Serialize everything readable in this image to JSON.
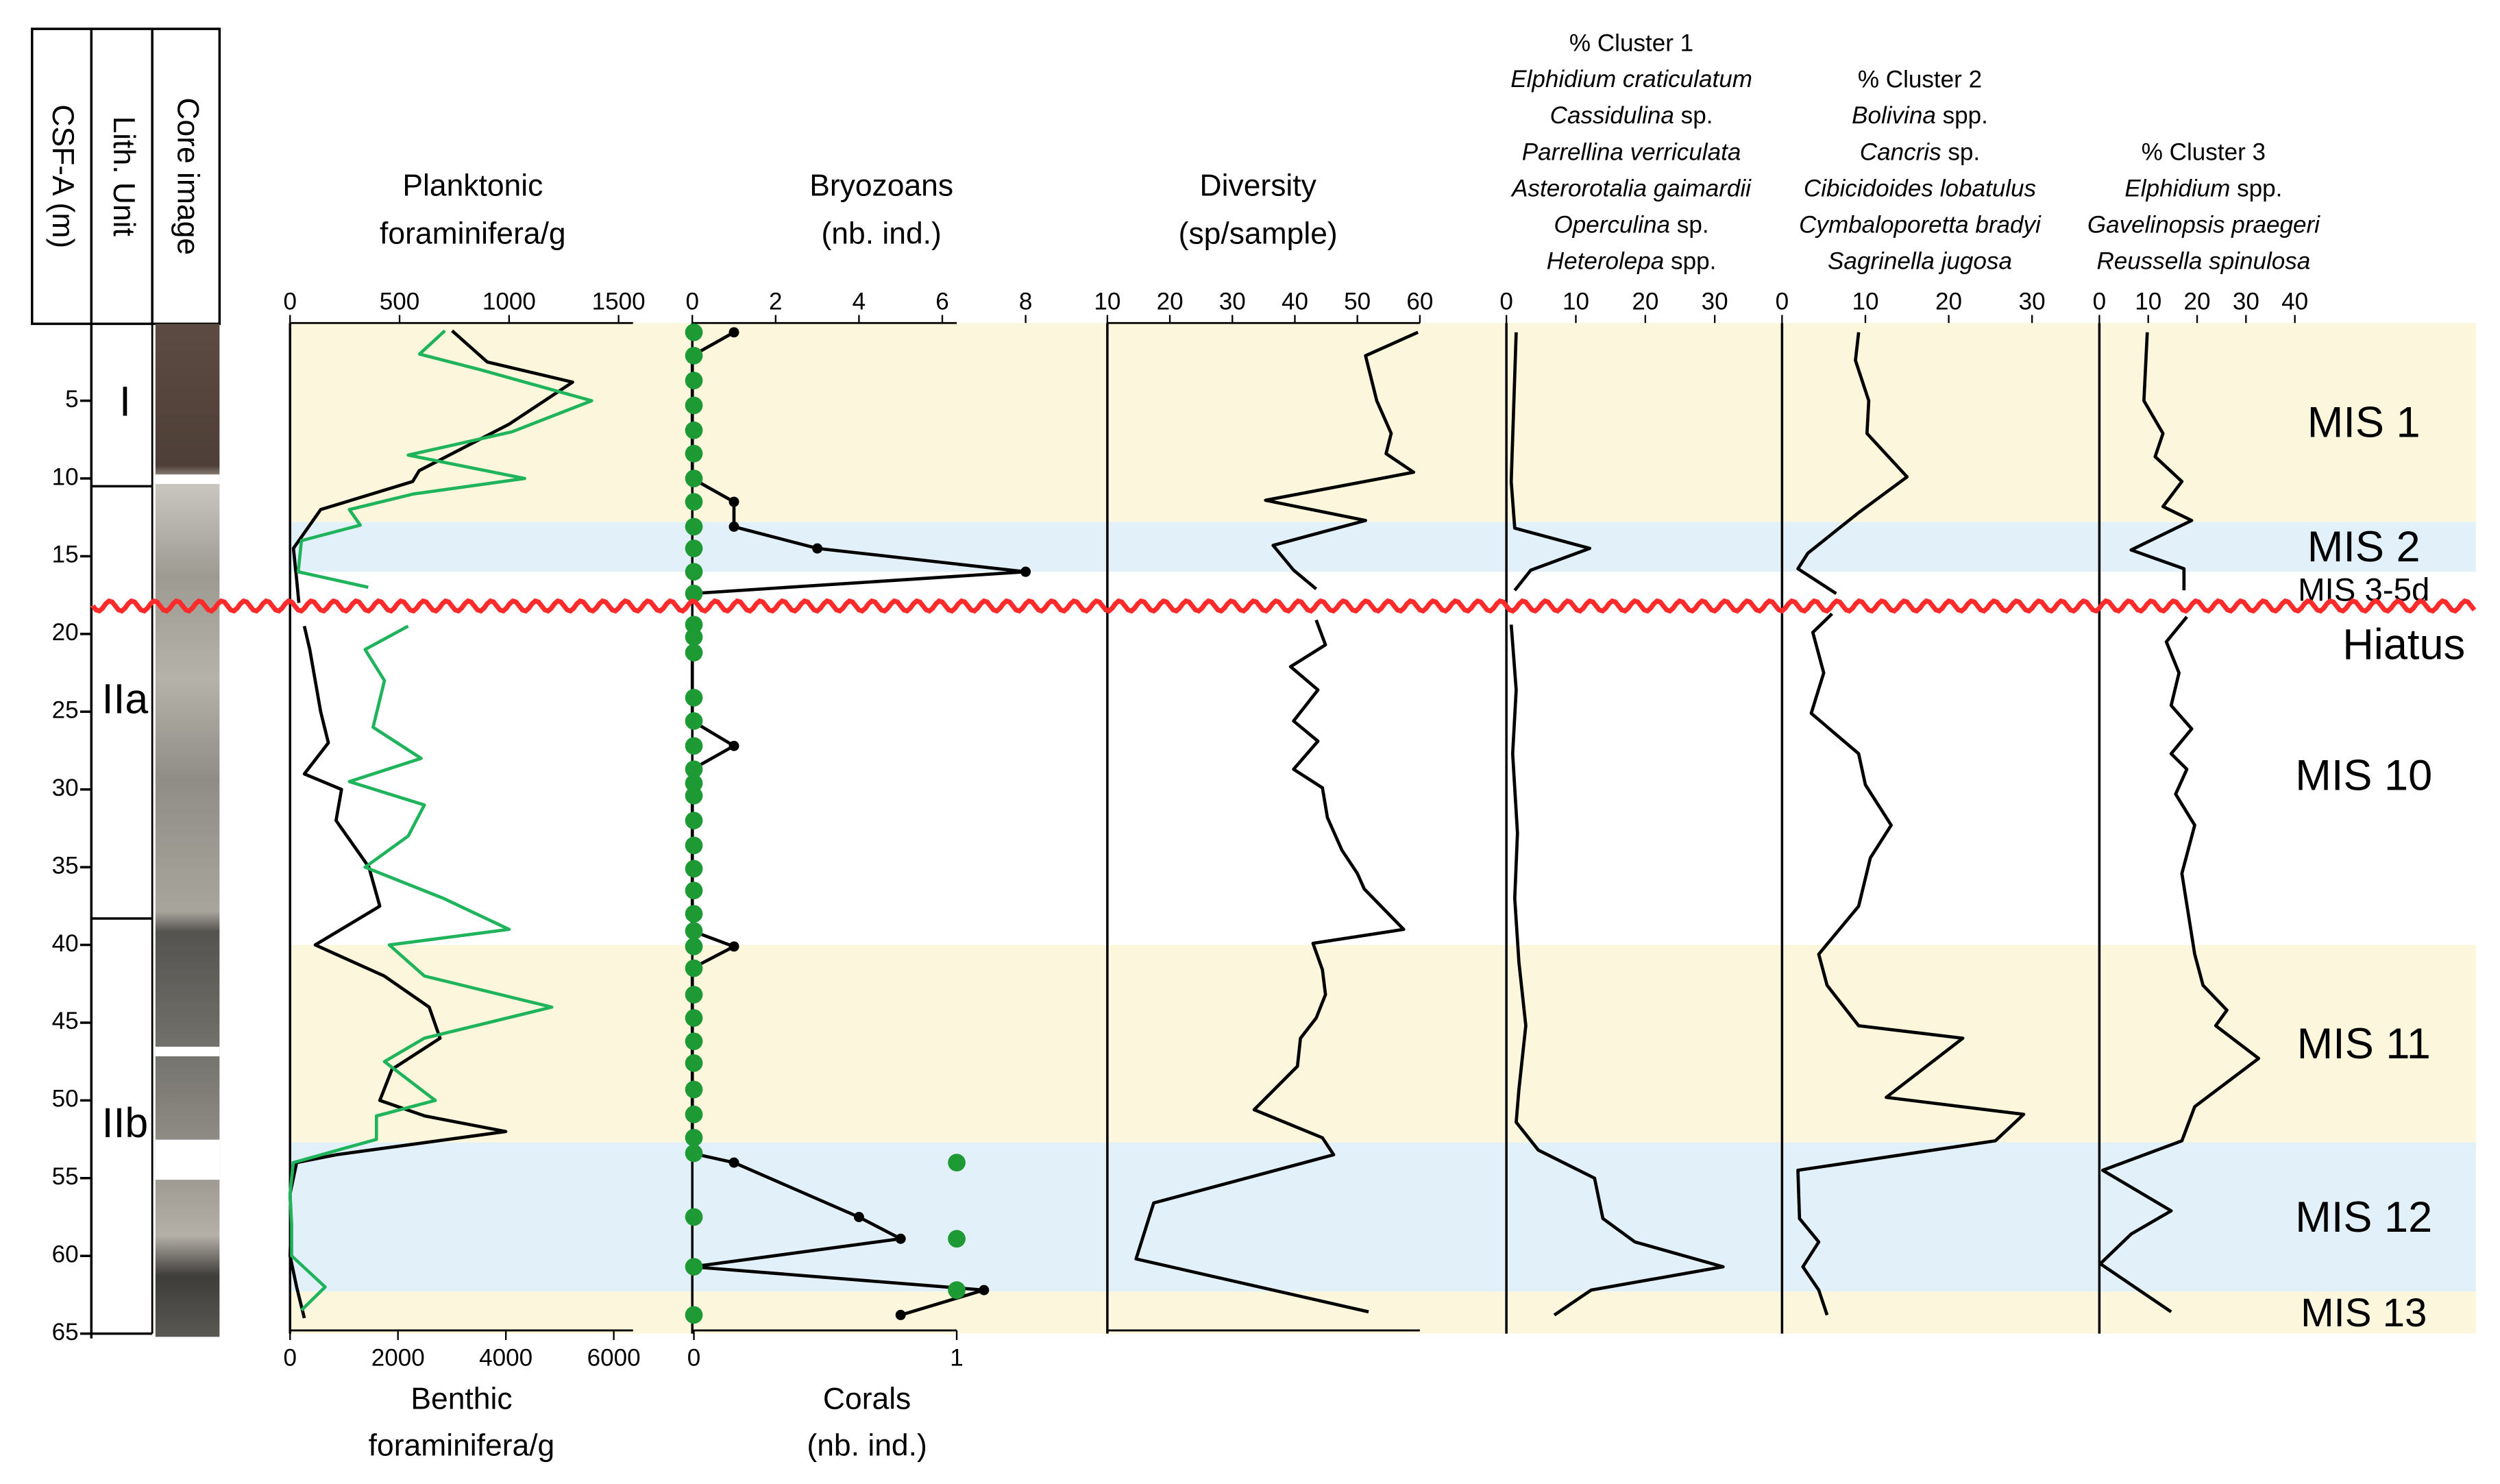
{
  "depth_axis": {
    "label": "CSF-A (m)",
    "ylim": [
      0,
      65
    ],
    "yticks": [
      5,
      10,
      15,
      20,
      25,
      30,
      35,
      40,
      45,
      50,
      55,
      60,
      65
    ]
  },
  "columns": [
    "Lith. Unit",
    "Core image"
  ],
  "lith_units": [
    {
      "label": "I",
      "top": 0,
      "bottom": 10.5
    },
    {
      "label": "IIa",
      "top": 10.5,
      "bottom": 38.3
    },
    {
      "label": "IIb",
      "top": 38.3,
      "bottom": 65
    }
  ],
  "intervals": [
    {
      "label": "MIS 1",
      "top": 0,
      "bottom": 12.8,
      "color": "#fcf7dc"
    },
    {
      "label": "MIS 2",
      "top": 12.8,
      "bottom": 16,
      "color": "#e2f1f9"
    },
    {
      "label": "MIS 3-5d",
      "top": 16,
      "bottom": 18.2,
      "color": null
    },
    {
      "label": "MIS 10",
      "top": 18.2,
      "bottom": 40,
      "color": null
    },
    {
      "label": "MIS 11",
      "top": 40,
      "bottom": 52.7,
      "color": "#fcf7dc"
    },
    {
      "label": "MIS 12",
      "top": 52.7,
      "bottom": 62.3,
      "color": "#e2f1f9"
    },
    {
      "label": "MIS 13",
      "top": 62.3,
      "bottom": 65,
      "color": "#fcf7dc"
    }
  ],
  "hiatus": {
    "label": "Hiatus",
    "depth": 18.2,
    "color": "#ff2a2a"
  },
  "chart_data": [
    {
      "type": "line",
      "box": true,
      "series": [
        {
          "xlabel": [
            "Planktonic",
            "foraminifera/g"
          ],
          "axis": "top",
          "color": "#000000",
          "line": true,
          "markers": false,
          "xlim": [
            0,
            1500
          ],
          "xticks": [
            0,
            500,
            1000,
            1500
          ],
          "depth": [
            0.5,
            2.5,
            3.8,
            6.5,
            9.5,
            10.2,
            12,
            14.5,
            16.5,
            18.0,
            19.5,
            21,
            25,
            27,
            29,
            30,
            32,
            35,
            37.5,
            40,
            42,
            44,
            46,
            48,
            50,
            51,
            52,
            53.5,
            54,
            56,
            58,
            60,
            62,
            64
          ],
          "values": [
            740,
            900,
            1290,
            1000,
            590,
            560,
            140,
            15,
            30,
            40,
            65,
            90,
            140,
            175,
            65,
            235,
            210,
            360,
            410,
            115,
            430,
            635,
            685,
            465,
            410,
            615,
            985,
            210,
            30,
            0,
            5,
            0,
            30,
            65
          ]
        },
        {
          "xlabel": [
            "Benthic",
            "foraminifera/g"
          ],
          "axis": "bottom",
          "color": "#1fb35c",
          "line": true,
          "markers": false,
          "xlim": [
            0,
            6000
          ],
          "xticks": [
            0,
            2000,
            4000,
            6000
          ],
          "depth": [
            0.5,
            2,
            3,
            5,
            7,
            8.5,
            10,
            11,
            12,
            13,
            14,
            16,
            17,
            19.5,
            21,
            23,
            26,
            28,
            29.5,
            31,
            33,
            35,
            37,
            39,
            40,
            42,
            44,
            46,
            47.5,
            50,
            51,
            52.5,
            54,
            56,
            58,
            60,
            62,
            63.5
          ],
          "values": [
            2870,
            2400,
            3520,
            5590,
            4110,
            2190,
            4350,
            2280,
            1100,
            1300,
            210,
            150,
            1450,
            2190,
            1390,
            1750,
            1540,
            2430,
            1100,
            2490,
            2190,
            1390,
            2840,
            4060,
            1840,
            2490,
            4850,
            2490,
            1750,
            2690,
            1600,
            1600,
            60,
            0,
            30,
            30,
            650,
            210
          ]
        }
      ]
    },
    {
      "type": "line",
      "box": true,
      "series": [
        {
          "xlabel": [
            "Bryozoans",
            "(nb. ind.)"
          ],
          "axis": "top",
          "color": "#000000",
          "line": true,
          "markers": true,
          "xlim": [
            0,
            8
          ],
          "xticks": [
            0,
            2,
            4,
            6,
            8
          ],
          "depth": [
            0.6,
            2.1,
            3.7,
            5.3,
            6.9,
            8.4,
            10,
            11.5,
            13.1,
            14.5,
            16,
            17.4,
            19.4,
            20.2,
            21.2,
            24.1,
            25.6,
            27.2,
            28.7,
            29.6,
            30.4,
            32,
            33.6,
            35.1,
            36.5,
            38,
            39.1,
            40.1,
            41.5,
            43.2,
            44.7,
            46.2,
            47.6,
            49.3,
            50.9,
            52.4,
            53.4,
            54,
            57.5,
            58.9,
            60.7,
            62.2,
            63.8
          ],
          "values": [
            1,
            0,
            0,
            0,
            0,
            0,
            0,
            1,
            1,
            3,
            8,
            0,
            0,
            0,
            0,
            0,
            0,
            1,
            0,
            0,
            0,
            0,
            0,
            0,
            0,
            0,
            0,
            1,
            0,
            0,
            0,
            0,
            0,
            0,
            0,
            0,
            0,
            1,
            4,
            5,
            0,
            7,
            5
          ]
        },
        {
          "xlabel": [
            "Corals",
            "(nb. ind.)"
          ],
          "axis": "bottom",
          "color": "#1e9a35",
          "line": false,
          "markers": true,
          "xlim": [
            0,
            1
          ],
          "xticks": [
            0,
            1
          ],
          "depth": [
            0.6,
            2.1,
            3.7,
            5.3,
            6.9,
            8.4,
            10,
            11.5,
            13.1,
            14.5,
            16,
            17.4,
            19.4,
            20.2,
            21.2,
            24.1,
            25.6,
            27.2,
            28.7,
            29.6,
            30.4,
            32,
            33.6,
            35.1,
            36.5,
            38,
            39.1,
            40.1,
            41.5,
            43.2,
            44.7,
            46.2,
            47.6,
            49.3,
            50.9,
            52.4,
            53.4,
            54,
            57.5,
            58.9,
            60.7,
            62.2,
            63.8
          ],
          "values": [
            0,
            0,
            0,
            0,
            0,
            0,
            0,
            0,
            0,
            0,
            0,
            0,
            0,
            0,
            0,
            0,
            0,
            0,
            0,
            0,
            0,
            0,
            0,
            0,
            0,
            0,
            0,
            0,
            0,
            0,
            0,
            0,
            0,
            0,
            0,
            0,
            0,
            1,
            0,
            1,
            0,
            1,
            0
          ]
        }
      ]
    },
    {
      "type": "line",
      "box": true,
      "series": [
        {
          "xlabel": [
            "Diversity",
            "(sp/sample)"
          ],
          "axis": "top",
          "color": "#000000",
          "line": true,
          "markers": false,
          "xlim": [
            10,
            60
          ],
          "xticks": [
            10,
            20,
            30,
            40,
            50,
            60
          ],
          "depth": [
            0.6,
            2.1,
            5.0,
            7.1,
            8.4,
            9.6,
            11.4,
            12.7,
            14.3,
            15.9,
            17.1,
            19.1,
            20.7,
            22.1,
            23.6,
            25.6,
            26.9,
            28.7,
            29.9,
            31.8,
            33.9,
            35.4,
            36.4,
            39.0,
            39.9,
            41.6,
            43.2,
            44.7,
            46.0,
            47.8,
            50.6,
            52.4,
            53.5,
            56.6,
            60.2,
            63.6
          ],
          "values": [
            59.7,
            51.3,
            53.1,
            55.4,
            54.6,
            59.0,
            35.3,
            51.3,
            36.5,
            39.8,
            43.4,
            43.4,
            44.9,
            39.3,
            43.7,
            39.8,
            43.7,
            39.8,
            44.4,
            45.2,
            47.5,
            50.0,
            51.1,
            57.4,
            42.9,
            44.4,
            44.9,
            43.4,
            40.9,
            40.4,
            33.5,
            44.4,
            46.2,
            17.4,
            14.6,
            51.8
          ]
        }
      ]
    },
    {
      "type": "line",
      "box": false,
      "series": [
        {
          "xlabel": [
            "% Cluster 1",
            "Elphidium craticulatum",
            "Cassidulina sp.",
            "Parrellina verriculata",
            "Asterorotalia gaimardii",
            "Operculina sp.",
            "Heterolepa spp."
          ],
          "axis": "top",
          "color": "#000000",
          "line": true,
          "markers": false,
          "xlim": [
            0,
            30
          ],
          "xticks": [
            0,
            10,
            20,
            30
          ],
          "depth": [
            0.6,
            10.2,
            13.2,
            14.5,
            15.9,
            17.2,
            19.4,
            23.6,
            27.7,
            32.8,
            37,
            41.1,
            45.2,
            49.3,
            51.4,
            53.2,
            55,
            57.6,
            59.1,
            60.7,
            62.2,
            63.8
          ],
          "values": [
            1.4,
            0.7,
            1.2,
            12.0,
            3.5,
            1.2,
            0.7,
            1.4,
            0.9,
            1.6,
            1.2,
            1.8,
            2.8,
            1.8,
            1.4,
            4.6,
            12.7,
            13.9,
            18.5,
            31.2,
            12.2,
            6.9
          ]
        }
      ]
    },
    {
      "type": "line",
      "box": false,
      "series": [
        {
          "xlabel": [
            "% Cluster 2",
            "Bolivina spp.",
            "Cancris sp.",
            "Cibicidoides lobatulus",
            "Cymbaloporetta bradyi",
            "Sagrinella jugosa"
          ],
          "axis": "top",
          "color": "#000000",
          "line": true,
          "markers": false,
          "xlim": [
            0,
            30
          ],
          "xticks": [
            0,
            10,
            20,
            30
          ],
          "depth": [
            0.6,
            2.4,
            5,
            7.1,
            9.9,
            12.2,
            14.8,
            15.8,
            17.4,
            18.7,
            19.9,
            22.5,
            25.1,
            27.7,
            29.7,
            32.3,
            34.4,
            37.5,
            40.6,
            42.6,
            45.2,
            46,
            49.8,
            50.9,
            52.6,
            54.5,
            57.6,
            59.1,
            60.7,
            62.2,
            63.8
          ],
          "values": [
            9.2,
            8.8,
            10.4,
            10.2,
            15,
            9.2,
            3.1,
            1.9,
            6.5,
            6.0,
            3.7,
            5.0,
            3.5,
            9.2,
            10,
            13.1,
            10.6,
            9.2,
            4.4,
            5.4,
            9.2,
            21.7,
            12.5,
            29,
            25.6,
            1.9,
            2.1,
            4.4,
            2.5,
            4.4,
            5.4
          ]
        }
      ]
    },
    {
      "type": "line",
      "box": false,
      "series": [
        {
          "xlabel": [
            "% Cluster 3",
            "Elphidium spp.",
            "Gavelinopsis praegeri",
            "Reussella spinulosa"
          ],
          "axis": "top",
          "color": "#000000",
          "line": true,
          "markers": false,
          "xlim": [
            0,
            40
          ],
          "xticks": [
            0,
            10,
            20,
            30,
            40
          ],
          "depth": [
            0.6,
            5,
            7.1,
            8.6,
            10.2,
            11.8,
            12.7,
            14.6,
            15.8,
            17.2,
            18.9,
            20.5,
            22.5,
            24.6,
            26.1,
            27.7,
            28.7,
            30.3,
            32.3,
            35.4,
            38,
            40.6,
            42.6,
            44.2,
            45.2,
            47.3,
            50.4,
            52.6,
            54.5,
            57.1,
            58.6,
            60.5,
            63.6
          ],
          "values": [
            9.8,
            9.1,
            13,
            11.4,
            16.9,
            13,
            18.9,
            6.5,
            17.3,
            17.3,
            17.9,
            13.7,
            16.3,
            14.7,
            18.9,
            14.7,
            17.9,
            15.6,
            19.5,
            16.9,
            18.2,
            19.5,
            21.2,
            26.1,
            23.8,
            32.6,
            19.5,
            16.9,
            0.7,
            14.7,
            6.5,
            0.2,
            14.7
          ]
        }
      ]
    }
  ]
}
